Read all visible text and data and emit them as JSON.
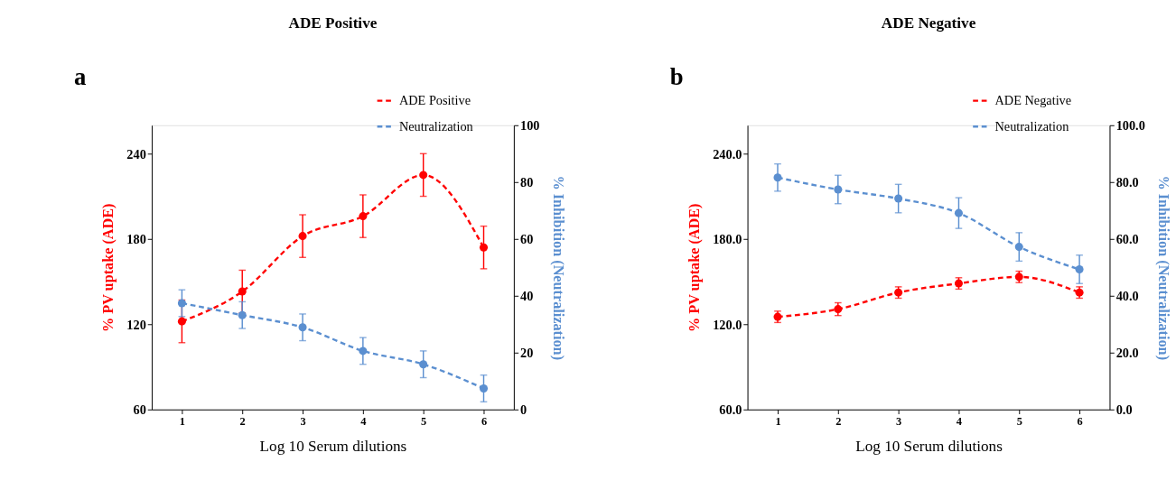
{
  "chart_data": [
    {
      "type": "line",
      "title": "ADE Positive",
      "annotations": [
        "a"
      ],
      "xlabel": "Log 10 Serum dilutions",
      "ylabel": "% PV uptake  (ADE)",
      "y2label": "% Inhibition (Neutralization)",
      "x": [
        1,
        2,
        3,
        4,
        5,
        6
      ],
      "xlim": [
        0.5,
        6.5
      ],
      "xticks": [
        1,
        2,
        3,
        4,
        5,
        6
      ],
      "ylim": [
        60,
        260
      ],
      "yticks": [
        60,
        120,
        180,
        240
      ],
      "y2lim": [
        0,
        100
      ],
      "y2ticks": [
        0,
        20,
        40,
        60,
        80,
        100
      ],
      "legend": "top right",
      "marker": "circle",
      "line_style": "dashed",
      "series": [
        {
          "name": "ADE Positive",
          "color": "#ff0000",
          "values": [
            122,
            143,
            182,
            196,
            225,
            174
          ],
          "errors": [
            15,
            15,
            15,
            15,
            15,
            15
          ]
        },
        {
          "name": "Neutralization",
          "color": "#5b8fd0",
          "axis": "y2",
          "values": [
            37.4,
            33.2,
            28.9,
            20.6,
            15.9,
            7.4
          ],
          "errors": [
            4.7,
            4.7,
            4.7,
            4.7,
            4.7,
            4.7
          ]
        }
      ]
    },
    {
      "type": "line",
      "title": "ADE Negative",
      "annotations": [
        "b"
      ],
      "xlabel": "Log 10 Serum dilutions",
      "ylabel": "% PV uptake  (ADE)",
      "y2label": "% Inhibition (Neutralization)",
      "x": [
        1,
        2,
        3,
        4,
        5,
        6
      ],
      "xlim": [
        0.5,
        6.5
      ],
      "xticks": [
        1,
        2,
        3,
        4,
        5,
        6
      ],
      "ylim": [
        60,
        260
      ],
      "yticks": [
        {
          "value": 60,
          "label": "60.0"
        },
        {
          "value": 120,
          "label": "120.0"
        },
        {
          "value": 180,
          "label": "180.0"
        },
        {
          "value": 240,
          "label": "240.0"
        }
      ],
      "y2lim": [
        0,
        100
      ],
      "y2ticks": [
        {
          "value": 0,
          "label": "0.0"
        },
        {
          "value": 20,
          "label": "20.0"
        },
        {
          "value": 40,
          "label": "40.0"
        },
        {
          "value": 60,
          "label": "60.0"
        },
        {
          "value": 80,
          "label": "80.0"
        },
        {
          "value": 100,
          "label": "100.0"
        }
      ],
      "legend": "top right",
      "marker": "circle",
      "line_style": "dashed",
      "series": [
        {
          "name": "ADE Negative",
          "color": "#ff0000",
          "values": [
            125.2,
            130.6,
            142.3,
            148.7,
            153.3,
            142.3
          ],
          "errors": [
            4,
            4.5,
            4,
            4,
            4,
            4
          ]
        },
        {
          "name": "Neutralization",
          "color": "#5b8fd0",
          "axis": "y2",
          "values": [
            81.6,
            77.4,
            74.2,
            69.1,
            57.2,
            49.3
          ],
          "errors": [
            4.8,
            5,
            5,
            5.4,
            5,
            5
          ]
        }
      ]
    }
  ]
}
